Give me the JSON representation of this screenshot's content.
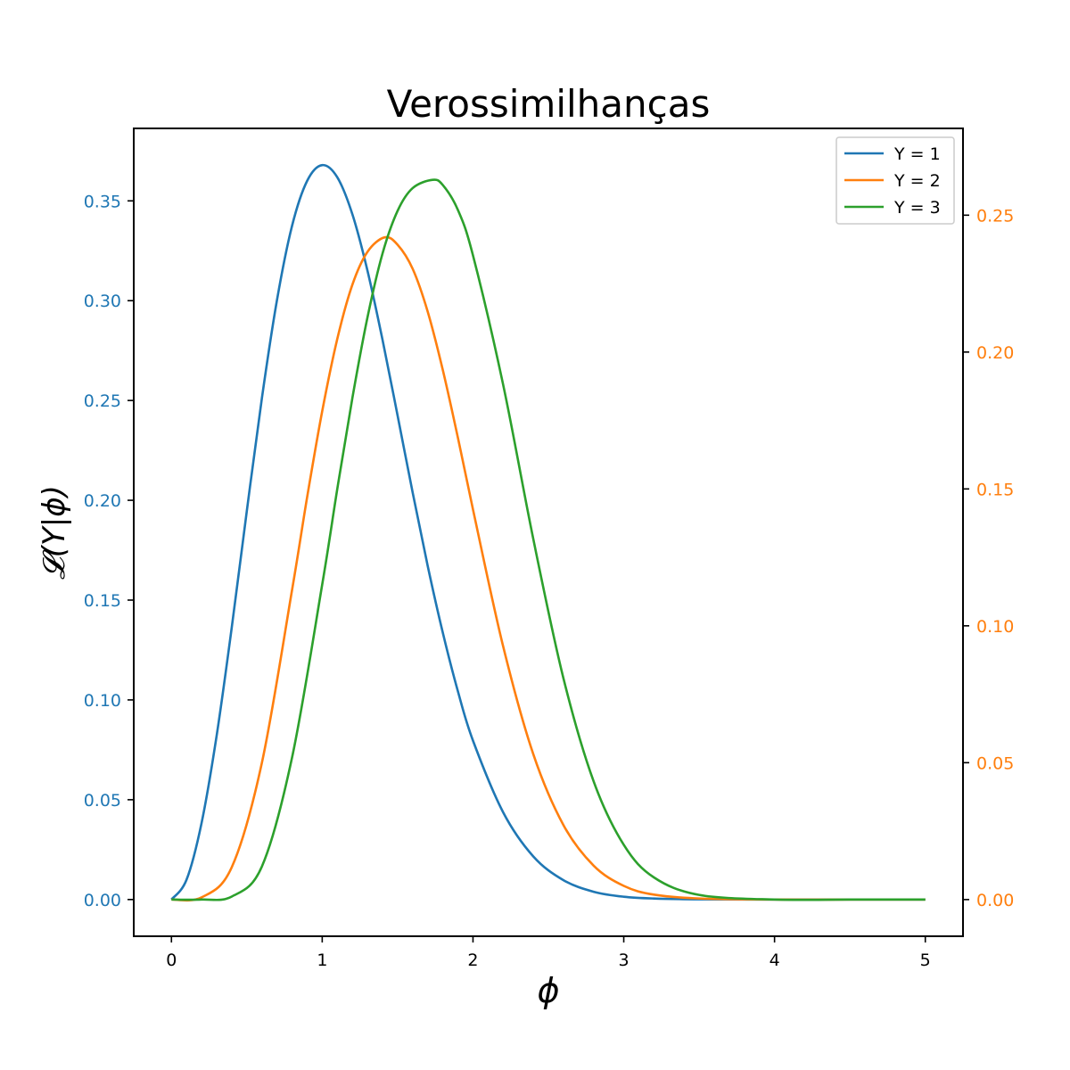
{
  "chart_data": {
    "type": "line",
    "title": "Verossimilhanças",
    "xlabel": "ϕ",
    "ylabel": "𝓛(Y|ϕ)",
    "x_domain": [
      0,
      5
    ],
    "xlim": [
      -0.25,
      5.25
    ],
    "ylim_left": [
      -0.0184,
      0.3863
    ],
    "ylim_right": [
      -0.0134,
      0.2817
    ],
    "x_ticks": [
      0,
      1,
      2,
      3,
      4,
      5
    ],
    "y_ticks_left": [
      0.0,
      0.05,
      0.1,
      0.15,
      0.2,
      0.25,
      0.3,
      0.35
    ],
    "y_ticks_right": [
      0.0,
      0.05,
      0.1,
      0.15,
      0.2,
      0.25
    ],
    "x_tick_labels": [
      "0",
      "1",
      "2",
      "3",
      "4",
      "5"
    ],
    "y_tick_labels_left": [
      "0.00",
      "0.05",
      "0.10",
      "0.15",
      "0.20",
      "0.25",
      "0.30",
      "0.35"
    ],
    "y_tick_labels_right": [
      "0.00",
      "0.05",
      "0.10",
      "0.15",
      "0.20",
      "0.25"
    ],
    "left_axis_color": "#1f77b4",
    "right_axis_color": "#ff7f0e",
    "grid": false,
    "legend_position": "top-right",
    "series": [
      {
        "name": "Y = 1",
        "color": "#1f77b4",
        "axis": "left",
        "x": [
          0,
          0.1,
          0.2,
          0.3,
          0.4,
          0.5,
          0.6,
          0.7,
          0.8,
          0.9,
          1.0,
          1.1,
          1.2,
          1.3,
          1.4,
          1.5,
          1.6,
          1.7,
          1.8,
          1.9,
          2.0,
          2.2,
          2.4,
          2.6,
          2.8,
          3.0,
          3.2,
          3.5,
          4.0,
          4.5,
          5.0
        ],
        "values": [
          0,
          0.0099,
          0.0384,
          0.0822,
          0.1363,
          0.1947,
          0.2512,
          0.3003,
          0.3375,
          0.36,
          0.3679,
          0.3618,
          0.3433,
          0.3151,
          0.2804,
          0.2424,
          0.2038,
          0.167,
          0.1336,
          0.1043,
          0.0796,
          0.0437,
          0.0216,
          0.0097,
          0.0039,
          0.0014,
          0.0005,
          0.0001,
          0.0,
          0.0,
          0.0
        ]
      },
      {
        "name": "Y = 2",
        "color": "#ff7f0e",
        "axis": "right",
        "x": [
          0,
          0.2,
          0.4,
          0.6,
          0.8,
          0.9,
          1.0,
          1.1,
          1.2,
          1.3,
          1.414,
          1.5,
          1.6,
          1.7,
          1.8,
          1.9,
          2.0,
          2.2,
          2.4,
          2.6,
          2.8,
          3.0,
          3.2,
          3.5,
          4.0,
          4.5,
          5.0
        ],
        "values": [
          0,
          0.0008,
          0.0118,
          0.05,
          0.1131,
          0.147,
          0.1784,
          0.2048,
          0.2246,
          0.2366,
          0.2419,
          0.2392,
          0.2304,
          0.2147,
          0.1934,
          0.1687,
          0.1425,
          0.0925,
          0.0531,
          0.0272,
          0.0124,
          0.005,
          0.0018,
          0.0004,
          0.0,
          0.0,
          0.0
        ]
      },
      {
        "name": "Y = 3",
        "color": "#2ca02c",
        "axis": "right",
        "x": [
          0,
          0.2,
          0.4,
          0.6,
          0.8,
          1.0,
          1.1,
          1.2,
          1.3,
          1.4,
          1.5,
          1.6,
          1.732,
          1.8,
          1.9,
          2.0,
          2.2,
          2.4,
          2.6,
          2.8,
          3.0,
          3.2,
          3.5,
          4.0,
          4.5,
          5.0
        ],
        "values": [
          0,
          0.0,
          0.0011,
          0.0121,
          0.0519,
          0.1151,
          0.15,
          0.1832,
          0.2126,
          0.236,
          0.2516,
          0.2599,
          0.2629,
          0.261,
          0.2519,
          0.2353,
          0.1881,
          0.1317,
          0.0808,
          0.0432,
          0.02,
          0.0081,
          0.0017,
          0.0,
          0.0,
          0.0
        ]
      }
    ]
  }
}
